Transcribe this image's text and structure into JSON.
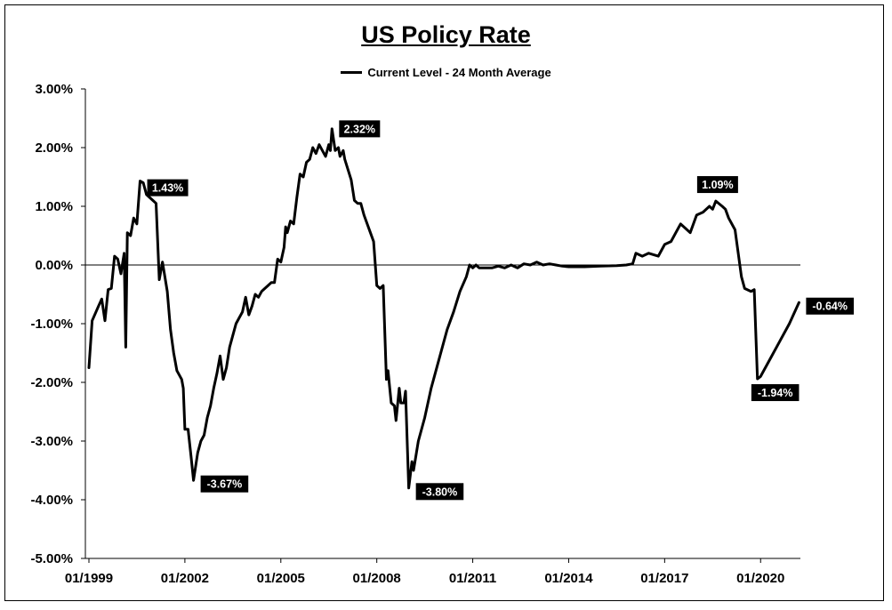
{
  "chart_data": {
    "type": "line",
    "title": "US Policy Rate",
    "xlabel": "",
    "ylabel": "",
    "ylim": [
      -5.0,
      3.0
    ],
    "y_ticks": [
      "3.00%",
      "2.00%",
      "1.00%",
      "0.00%",
      "-1.00%",
      "-2.00%",
      "-3.00%",
      "-4.00%",
      "-5.00%"
    ],
    "y_tick_values": [
      3,
      2,
      1,
      0,
      -1,
      -2,
      -3,
      -4,
      -5
    ],
    "x_ticks": [
      "01/1999",
      "01/2002",
      "01/2005",
      "01/2008",
      "01/2011",
      "01/2014",
      "01/2017",
      "01/2020"
    ],
    "x_tick_years": [
      1999,
      2002,
      2005,
      2008,
      2011,
      2014,
      2017,
      2020
    ],
    "xlim": [
      1999.0,
      2021.3
    ],
    "grid": false,
    "legend_position": "top-center",
    "series": [
      {
        "name": "Current Level - 24 Month Average",
        "color": "#000000",
        "points": [
          [
            1999.0,
            -1.75
          ],
          [
            1999.1,
            -0.95
          ],
          [
            1999.3,
            -0.7
          ],
          [
            1999.4,
            -0.58
          ],
          [
            1999.5,
            -0.95
          ],
          [
            1999.6,
            -0.42
          ],
          [
            1999.7,
            -0.4
          ],
          [
            1999.8,
            0.15
          ],
          [
            1999.9,
            0.1
          ],
          [
            2000.0,
            -0.15
          ],
          [
            2000.1,
            0.2
          ],
          [
            2000.15,
            -1.4
          ],
          [
            2000.2,
            0.55
          ],
          [
            2000.3,
            0.5
          ],
          [
            2000.4,
            0.8
          ],
          [
            2000.5,
            0.7
          ],
          [
            2000.6,
            1.43
          ],
          [
            2000.7,
            1.4
          ],
          [
            2000.8,
            1.2
          ],
          [
            2000.9,
            1.15
          ],
          [
            2001.0,
            1.1
          ],
          [
            2001.1,
            1.05
          ],
          [
            2001.2,
            -0.25
          ],
          [
            2001.3,
            0.05
          ],
          [
            2001.45,
            -0.45
          ],
          [
            2001.55,
            -1.1
          ],
          [
            2001.65,
            -1.5
          ],
          [
            2001.75,
            -1.8
          ],
          [
            2001.9,
            -1.95
          ],
          [
            2001.95,
            -2.1
          ],
          [
            2002.0,
            -2.8
          ],
          [
            2002.1,
            -2.8
          ],
          [
            2002.2,
            -3.3
          ],
          [
            2002.27,
            -3.67
          ],
          [
            2002.4,
            -3.2
          ],
          [
            2002.5,
            -3.0
          ],
          [
            2002.6,
            -2.9
          ],
          [
            2002.7,
            -2.6
          ],
          [
            2002.8,
            -2.4
          ],
          [
            2002.9,
            -2.1
          ],
          [
            2003.0,
            -1.85
          ],
          [
            2003.1,
            -1.55
          ],
          [
            2003.2,
            -1.95
          ],
          [
            2003.3,
            -1.75
          ],
          [
            2003.4,
            -1.4
          ],
          [
            2003.5,
            -1.2
          ],
          [
            2003.6,
            -1.0
          ],
          [
            2003.7,
            -0.9
          ],
          [
            2003.8,
            -0.8
          ],
          [
            2003.9,
            -0.55
          ],
          [
            2004.0,
            -0.85
          ],
          [
            2004.1,
            -0.7
          ],
          [
            2004.2,
            -0.5
          ],
          [
            2004.3,
            -0.55
          ],
          [
            2004.4,
            -0.45
          ],
          [
            2004.5,
            -0.4
          ],
          [
            2004.6,
            -0.35
          ],
          [
            2004.7,
            -0.3
          ],
          [
            2004.8,
            -0.3
          ],
          [
            2004.9,
            0.1
          ],
          [
            2005.0,
            0.05
          ],
          [
            2005.1,
            0.3
          ],
          [
            2005.15,
            0.65
          ],
          [
            2005.2,
            0.55
          ],
          [
            2005.3,
            0.75
          ],
          [
            2005.4,
            0.7
          ],
          [
            2005.5,
            1.15
          ],
          [
            2005.6,
            1.55
          ],
          [
            2005.7,
            1.5
          ],
          [
            2005.8,
            1.75
          ],
          [
            2005.9,
            1.8
          ],
          [
            2006.0,
            2.0
          ],
          [
            2006.1,
            1.9
          ],
          [
            2006.2,
            2.05
          ],
          [
            2006.3,
            1.95
          ],
          [
            2006.4,
            1.85
          ],
          [
            2006.5,
            2.05
          ],
          [
            2006.55,
            1.95
          ],
          [
            2006.6,
            2.32
          ],
          [
            2006.7,
            1.95
          ],
          [
            2006.8,
            2.0
          ],
          [
            2006.85,
            1.85
          ],
          [
            2006.95,
            1.95
          ],
          [
            2007.0,
            1.8
          ],
          [
            2007.2,
            1.45
          ],
          [
            2007.3,
            1.1
          ],
          [
            2007.4,
            1.05
          ],
          [
            2007.5,
            1.05
          ],
          [
            2007.6,
            0.85
          ],
          [
            2007.8,
            0.55
          ],
          [
            2007.9,
            0.4
          ],
          [
            2008.0,
            -0.35
          ],
          [
            2008.1,
            -0.4
          ],
          [
            2008.2,
            -0.35
          ],
          [
            2008.3,
            -1.95
          ],
          [
            2008.35,
            -1.8
          ],
          [
            2008.45,
            -2.35
          ],
          [
            2008.55,
            -2.4
          ],
          [
            2008.6,
            -2.65
          ],
          [
            2008.7,
            -2.1
          ],
          [
            2008.75,
            -2.35
          ],
          [
            2008.85,
            -2.35
          ],
          [
            2008.9,
            -2.15
          ],
          [
            2009.0,
            -3.8
          ],
          [
            2009.1,
            -3.35
          ],
          [
            2009.15,
            -3.5
          ],
          [
            2009.3,
            -3.0
          ],
          [
            2009.5,
            -2.6
          ],
          [
            2009.7,
            -2.1
          ],
          [
            2009.9,
            -1.7
          ],
          [
            2010.0,
            -1.5
          ],
          [
            2010.2,
            -1.1
          ],
          [
            2010.4,
            -0.8
          ],
          [
            2010.6,
            -0.45
          ],
          [
            2010.8,
            -0.2
          ],
          [
            2010.9,
            0.0
          ],
          [
            2011.0,
            -0.05
          ],
          [
            2011.1,
            0.0
          ],
          [
            2011.2,
            -0.05
          ],
          [
            2011.4,
            -0.05
          ],
          [
            2011.6,
            -0.05
          ],
          [
            2011.8,
            -0.02
          ],
          [
            2012.0,
            -0.05
          ],
          [
            2012.2,
            0.0
          ],
          [
            2012.4,
            -0.05
          ],
          [
            2012.6,
            0.02
          ],
          [
            2012.8,
            0.0
          ],
          [
            2013.0,
            0.05
          ],
          [
            2013.2,
            0.0
          ],
          [
            2013.4,
            0.02
          ],
          [
            2013.6,
            0.0
          ],
          [
            2013.8,
            -0.02
          ],
          [
            2014.0,
            -0.03
          ],
          [
            2014.5,
            -0.03
          ],
          [
            2015.0,
            -0.02
          ],
          [
            2015.5,
            -0.01
          ],
          [
            2015.8,
            0.0
          ],
          [
            2016.0,
            0.02
          ],
          [
            2016.1,
            0.2
          ],
          [
            2016.3,
            0.15
          ],
          [
            2016.5,
            0.2
          ],
          [
            2016.8,
            0.15
          ],
          [
            2017.0,
            0.35
          ],
          [
            2017.2,
            0.4
          ],
          [
            2017.5,
            0.7
          ],
          [
            2017.8,
            0.55
          ],
          [
            2018.0,
            0.85
          ],
          [
            2018.2,
            0.9
          ],
          [
            2018.4,
            1.0
          ],
          [
            2018.5,
            0.95
          ],
          [
            2018.6,
            1.09
          ],
          [
            2018.8,
            1.0
          ],
          [
            2018.9,
            0.95
          ],
          [
            2019.0,
            0.8
          ],
          [
            2019.2,
            0.6
          ],
          [
            2019.3,
            0.2
          ],
          [
            2019.4,
            -0.2
          ],
          [
            2019.5,
            -0.4
          ],
          [
            2019.7,
            -0.45
          ],
          [
            2019.8,
            -0.42
          ],
          [
            2019.9,
            -1.94
          ],
          [
            2020.0,
            -1.9
          ],
          [
            2020.3,
            -1.6
          ],
          [
            2020.6,
            -1.3
          ],
          [
            2020.9,
            -1.0
          ],
          [
            2021.2,
            -0.64
          ]
        ]
      }
    ],
    "annotations": [
      {
        "label": "1.43%",
        "x": 2000.6,
        "y": 1.43,
        "place": "right-below"
      },
      {
        "label": "-3.67%",
        "x": 2002.27,
        "y": -3.67,
        "place": "right"
      },
      {
        "label": "2.32%",
        "x": 2006.6,
        "y": 2.32,
        "place": "right"
      },
      {
        "label": "-3.80%",
        "x": 2009.0,
        "y": -3.8,
        "place": "right"
      },
      {
        "label": "1.09%",
        "x": 2018.6,
        "y": 1.09,
        "place": "above"
      },
      {
        "label": "-1.94%",
        "x": 2019.9,
        "y": -1.94,
        "place": "below"
      },
      {
        "label": "-0.64%",
        "x": 2021.2,
        "y": -0.64,
        "place": "right"
      }
    ]
  }
}
